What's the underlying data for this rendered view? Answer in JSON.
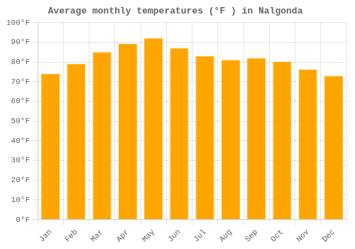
{
  "chart_data": {
    "type": "bar",
    "title": "Average monthly temperatures (°F ) in Nalgonda",
    "categories": [
      "Jan",
      "Feb",
      "Mar",
      "Apr",
      "May",
      "Jun",
      "Jul",
      "Aug",
      "Sep",
      "Oct",
      "Nov",
      "Dec"
    ],
    "values": [
      74,
      79,
      85,
      89,
      92,
      87,
      83,
      81,
      82,
      80,
      76,
      73
    ],
    "color": "#FFA500",
    "ylim": [
      0,
      100
    ],
    "yticks": [
      {
        "value": 0,
        "label": "0°F"
      },
      {
        "value": 10,
        "label": "10°F"
      },
      {
        "value": 20,
        "label": "20°F"
      },
      {
        "value": 30,
        "label": "30°F"
      },
      {
        "value": 40,
        "label": "40°F"
      },
      {
        "value": 50,
        "label": "50°F"
      },
      {
        "value": 60,
        "label": "60°F"
      },
      {
        "value": 70,
        "label": "70°F"
      },
      {
        "value": 80,
        "label": "80°F"
      },
      {
        "value": 90,
        "label": "90°F"
      },
      {
        "value": 100,
        "label": "100°F"
      }
    ],
    "grid": true
  }
}
